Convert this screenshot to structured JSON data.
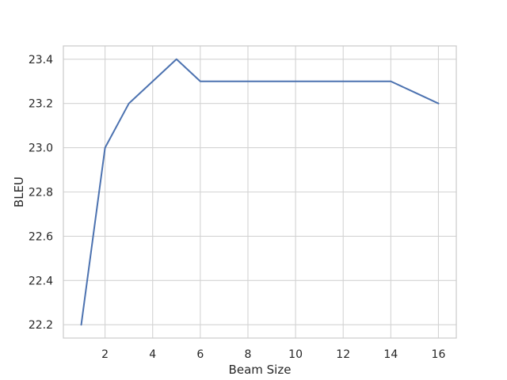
{
  "chart_data": {
    "type": "line",
    "title": "",
    "xlabel": "Beam Size",
    "ylabel": "BLEU",
    "xlim": [
      0.25,
      16.75
    ],
    "ylim": [
      22.14,
      23.46
    ],
    "xticks": [
      2,
      4,
      6,
      8,
      10,
      12,
      14,
      16
    ],
    "yticks": [
      22.2,
      22.4,
      22.6,
      22.8,
      23.0,
      23.2,
      23.4
    ],
    "ytick_labels": [
      "22.2",
      "22.4",
      "22.6",
      "22.8",
      "23.0",
      "23.2",
      "23.4"
    ],
    "grid": true,
    "legend": "none",
    "series": [
      {
        "color": "#4c72b0",
        "x": [
          1,
          2,
          3,
          4,
          5,
          6,
          7,
          8,
          9,
          10,
          11,
          12,
          13,
          14,
          15,
          16
        ],
        "y": [
          22.2,
          23.0,
          23.2,
          23.3,
          23.4,
          23.3,
          23.3,
          23.3,
          23.3,
          23.3,
          23.3,
          23.3,
          23.3,
          23.3,
          23.25,
          23.2
        ]
      }
    ]
  }
}
